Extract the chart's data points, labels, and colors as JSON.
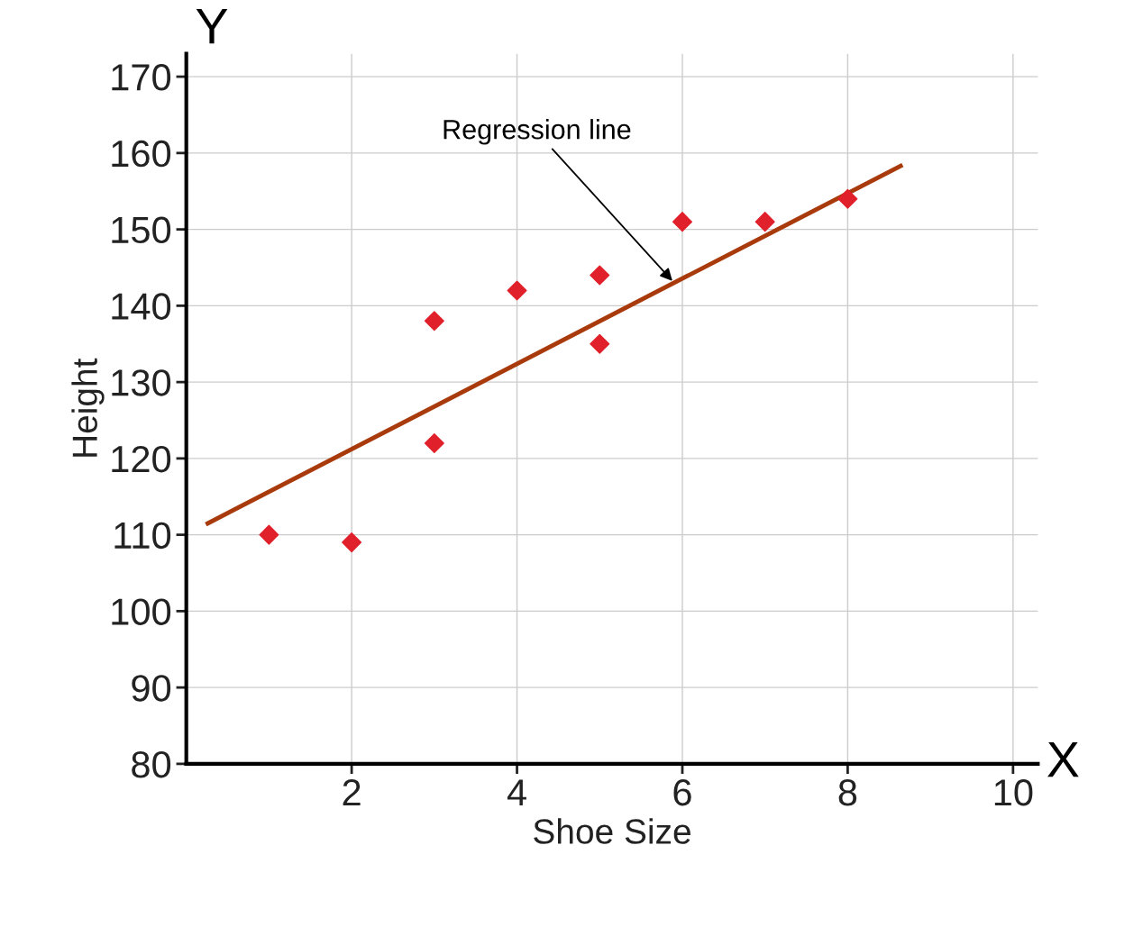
{
  "chart_data": {
    "type": "scatter",
    "xlabel": "Shoe Size",
    "ylabel": "Height",
    "series": [
      {
        "color": "#e0202a",
        "marker": "diamond",
        "x": [
          1,
          2,
          3,
          3,
          4,
          5,
          5,
          6,
          7,
          8
        ],
        "values": [
          110,
          109,
          138,
          122,
          142,
          144,
          135,
          151,
          151,
          154
        ]
      },
      {
        "type": "line",
        "color": "#a83a0c",
        "marker": "none",
        "x": [
          0.26,
          8.64
        ],
        "values": [
          111.5,
          158.3
        ]
      }
    ],
    "xlim": [
      0,
      10.3
    ],
    "ylim": [
      80,
      173
    ],
    "xticks": [
      2,
      4,
      6,
      8,
      10
    ],
    "yticks": [
      80,
      90,
      100,
      110,
      120,
      130,
      140,
      150,
      160,
      170
    ],
    "grid": true,
    "legend": false,
    "annotations": [
      {
        "text": "Regression line",
        "x": 5.9,
        "y": 143
      },
      "Y",
      "X"
    ]
  }
}
